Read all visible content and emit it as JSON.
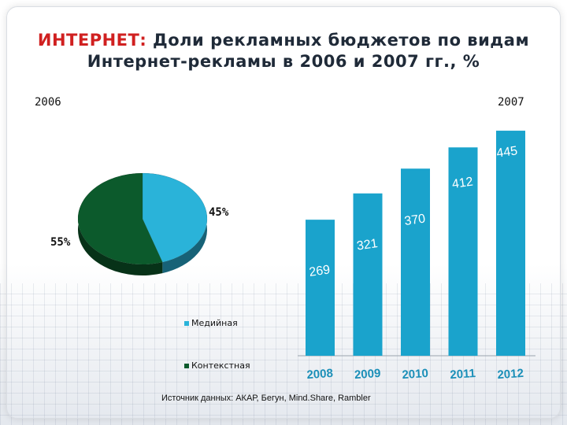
{
  "title": {
    "accent": "ИНТЕРНЕТ:",
    "line1_rest": " Доли рекламных бюджетов по видам",
    "line2": "Интернет-рекламы в 2006 и 2007 гг., %"
  },
  "source": "Источник данных: АКАР, Бегун, Mind.Share, Rambler",
  "chart_data": [
    {
      "type": "pie",
      "year_label": "2006",
      "slices": [
        {
          "name": "Медийная",
          "value": 45,
          "label": "45%",
          "color": "#2ab3d9"
        },
        {
          "name": "Контекстная",
          "value": 55,
          "label": "55%",
          "color": "#0c5a2c"
        }
      ],
      "legend": [
        "Медийная",
        "Контекстная"
      ]
    },
    {
      "type": "bar",
      "year_label": "2007",
      "categories": [
        "2008",
        "2009",
        "2010",
        "2011",
        "2012"
      ],
      "values": [
        269,
        321,
        370,
        412,
        445
      ],
      "value_labels": [
        "269",
        "321",
        "370",
        "412",
        "445"
      ],
      "ylim": [
        0,
        470
      ],
      "color": "#1aa3cc"
    }
  ]
}
